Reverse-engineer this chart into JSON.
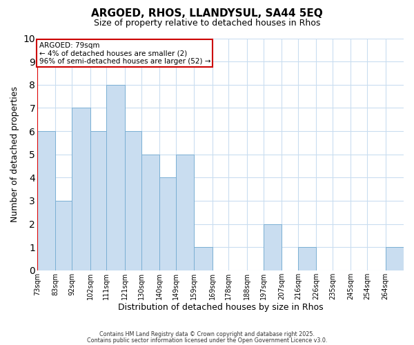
{
  "title": "ARGOED, RHOS, LLANDYSUL, SA44 5EQ",
  "subtitle": "Size of property relative to detached houses in Rhos",
  "xlabel": "Distribution of detached houses by size in Rhos",
  "ylabel": "Number of detached properties",
  "bin_labels": [
    "73sqm",
    "83sqm",
    "92sqm",
    "102sqm",
    "111sqm",
    "121sqm",
    "130sqm",
    "140sqm",
    "149sqm",
    "159sqm",
    "169sqm",
    "178sqm",
    "188sqm",
    "197sqm",
    "207sqm",
    "216sqm",
    "226sqm",
    "235sqm",
    "245sqm",
    "254sqm",
    "264sqm"
  ],
  "counts": [
    6,
    3,
    7,
    6,
    8,
    6,
    5,
    4,
    5,
    1,
    0,
    0,
    0,
    2,
    0,
    1,
    0,
    0,
    0,
    0,
    1
  ],
  "bar_color": "#c9ddf0",
  "bar_edge_color": "#7aafd4",
  "grid_color": "#c9ddf0",
  "red_line_color": "#dd0000",
  "ann_line1": "ARGOED: 79sqm",
  "ann_line2": "← 4% of detached houses are smaller (2)",
  "ann_line3": "96% of semi-detached houses are larger (52) →",
  "ann_box_facecolor": "#ffffff",
  "ann_box_edgecolor": "#cc0000",
  "ylim_max": 10,
  "bin_edges": [
    73,
    83,
    92,
    102,
    111,
    121,
    130,
    140,
    149,
    159,
    169,
    178,
    188,
    197,
    207,
    216,
    226,
    235,
    245,
    254,
    264,
    274
  ],
  "footer1": "Contains HM Land Registry data © Crown copyright and database right 2025.",
  "footer2": "Contains public sector information licensed under the Open Government Licence v3.0.",
  "figwidth": 6.0,
  "figheight": 5.0,
  "dpi": 100
}
